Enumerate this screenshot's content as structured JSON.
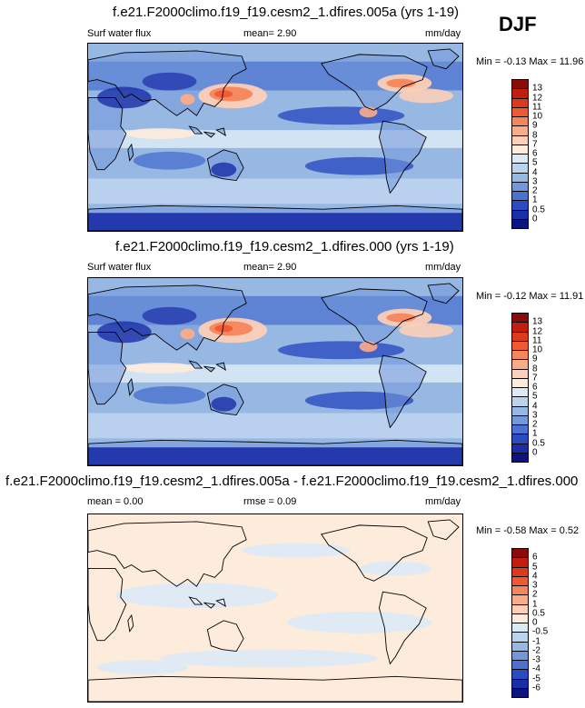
{
  "season": "DJF",
  "panels": [
    {
      "title": "f.e21.F2000climo.f19_f19.cesm2_1.dfires.005a (yrs 1-19)",
      "left_label": "Surf water flux",
      "mid_label": "mean=   2.90",
      "units": "mm/day",
      "minmax": "Min = -0.13 Max = 11.96",
      "colorbar": {
        "labels": [
          "13",
          "12",
          "11",
          "10",
          "9",
          "8",
          "7",
          "6",
          "5",
          "4",
          "3",
          "2",
          "1",
          "0.5",
          "0"
        ],
        "colors": [
          "#8b0a0a",
          "#c21e10",
          "#dd3a1c",
          "#ef5a30",
          "#f5855a",
          "#f9ac8a",
          "#fccfb7",
          "#fdebdc",
          "#dceaf6",
          "#bcd3ee",
          "#98b8e4",
          "#7398da",
          "#4b72d0",
          "#2a4cc0",
          "#1a2ea6",
          "#0d1480"
        ]
      },
      "variant": "full"
    },
    {
      "title": "f.e21.F2000climo.f19_f19.cesm2_1.dfires.000 (yrs 1-19)",
      "left_label": "Surf water flux",
      "mid_label": "mean=   2.90",
      "units": "mm/day",
      "minmax": "Min = -0.12 Max = 11.91",
      "colorbar": {
        "labels": [
          "13",
          "12",
          "11",
          "10",
          "9",
          "8",
          "7",
          "6",
          "5",
          "4",
          "3",
          "2",
          "1",
          "0.5",
          "0"
        ],
        "colors": [
          "#8b0a0a",
          "#c21e10",
          "#dd3a1c",
          "#ef5a30",
          "#f5855a",
          "#f9ac8a",
          "#fccfb7",
          "#fdebdc",
          "#dceaf6",
          "#bcd3ee",
          "#98b8e4",
          "#7398da",
          "#4b72d0",
          "#2a4cc0",
          "#1a2ea6",
          "#0d1480"
        ]
      },
      "variant": "full"
    },
    {
      "title": "f.e21.F2000climo.f19_f19.cesm2_1.dfires.005a - f.e21.F2000climo.f19_f19.cesm2_1.dfires.000",
      "left_label": "mean =   0.00",
      "mid_label": "rmse =  0.09",
      "units": "mm/day",
      "minmax": "Min = -0.58 Max =  0.52",
      "colorbar": {
        "labels": [
          "6",
          "5",
          "4",
          "3",
          "2",
          "1",
          "0.5",
          "0",
          "-0.5",
          "-1",
          "-2",
          "-3",
          "-4",
          "-5",
          "-6"
        ],
        "colors": [
          "#8b0a0a",
          "#c21e10",
          "#dd3a1c",
          "#ef5a30",
          "#f5855a",
          "#f9ac8a",
          "#fccfb7",
          "#fdebdc",
          "#dceaf6",
          "#bcd3ee",
          "#98b8e4",
          "#7398da",
          "#4b72d0",
          "#2a4cc0",
          "#1a2ea6",
          "#0d1480"
        ]
      },
      "variant": "diff"
    }
  ]
}
